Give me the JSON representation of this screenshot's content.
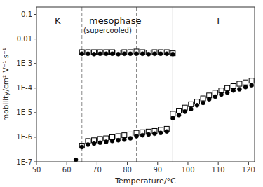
{
  "chart_data": {
    "type": "scatter",
    "log": "y",
    "grid": false,
    "xlabel": "Temperature/°C",
    "ylabel": "mobility/cm² V⁻¹ s⁻¹",
    "xlim": [
      50,
      122
    ],
    "ylim": [
      1e-07,
      0.2
    ],
    "xticks": [
      50,
      60,
      70,
      80,
      90,
      100,
      110,
      120
    ],
    "yticks": [
      {
        "value": 1e-07,
        "label": "1E-7"
      },
      {
        "value": 1e-06,
        "label": "1E-6"
      },
      {
        "value": 1e-05,
        "label": "1E-5"
      },
      {
        "value": 0.0001,
        "label": "1E-4"
      },
      {
        "value": 0.001,
        "label": "1E-3"
      },
      0.01,
      0.1
    ],
    "series": [
      {
        "marker": "circle",
        "color": "#000000",
        "x": [
          65,
          67,
          69,
          71,
          73,
          75,
          77,
          79,
          81,
          83,
          85,
          87,
          89,
          91,
          93,
          95
        ],
        "values": [
          0.0025,
          0.0025,
          0.0024,
          0.0025,
          0.0025,
          0.0025,
          0.0024,
          0.0025,
          0.0025,
          0.0025,
          0.0025,
          0.0024,
          0.0025,
          0.0025,
          0.0025,
          0.0024
        ]
      },
      {
        "marker": "square-open",
        "color": "#000000",
        "x": [
          65,
          67,
          69,
          71,
          73,
          75,
          77,
          79,
          81,
          83,
          85,
          87,
          89,
          91,
          93,
          95
        ],
        "values": [
          0.0029,
          0.0029,
          0.0029,
          0.0029,
          0.0029,
          0.0029,
          0.0028,
          0.0029,
          0.0029,
          0.0031,
          0.0029,
          0.0028,
          0.0029,
          0.0029,
          0.0029,
          0.0026
        ]
      },
      {
        "marker": "circle",
        "color": "#000000",
        "x": [
          63,
          65,
          67,
          69,
          71,
          73,
          75,
          77,
          79,
          81,
          83,
          85,
          87,
          89,
          91,
          93,
          95,
          97,
          99,
          101,
          103,
          105,
          107,
          109,
          111,
          113,
          115,
          117,
          119,
          121
        ],
        "values": [
          1.2e-07,
          4e-07,
          5e-07,
          5.5e-07,
          6e-07,
          6.5e-07,
          7e-07,
          7.5e-07,
          8e-07,
          9e-07,
          1.1e-06,
          1.2e-06,
          1.3e-06,
          1.4e-06,
          1.5e-06,
          1.7e-06,
          6e-06,
          8e-06,
          1.1e-05,
          1.4e-05,
          2e-05,
          2.5e-05,
          3.5e-05,
          4.5e-05,
          5.5e-05,
          6.5e-05,
          8e-05,
          9e-05,
          0.00011,
          0.00013
        ]
      },
      {
        "marker": "square-open",
        "color": "#000000",
        "x": [
          65,
          67,
          69,
          71,
          73,
          75,
          77,
          79,
          81,
          83,
          85,
          87,
          89,
          91,
          93,
          95,
          97,
          99,
          101,
          103,
          105,
          107,
          109,
          111,
          113,
          115,
          117,
          119,
          121
        ],
        "values": [
          4.5e-07,
          7e-07,
          7.5e-07,
          8.5e-07,
          9e-07,
          1e-06,
          1.1e-06,
          1.2e-06,
          1.3e-06,
          1.5e-06,
          1.6e-06,
          1.7e-06,
          1.8e-06,
          2e-06,
          2.2e-06,
          9e-06,
          1.2e-05,
          1.6e-05,
          2.2e-05,
          2.8e-05,
          3.8e-05,
          5e-05,
          6.5e-05,
          8e-05,
          0.0001,
          0.00012,
          0.00015,
          0.00017,
          0.0002
        ]
      }
    ],
    "vlines": [
      {
        "x": 65,
        "line_style": "dashed",
        "color": "#888888"
      },
      {
        "x": 83,
        "line_style": "dashed",
        "color": "#888888"
      },
      {
        "x": 95,
        "line_style": "solid",
        "color": "#888888"
      }
    ],
    "annotations": [
      {
        "text": "K",
        "x": 57,
        "y": 0.055
      },
      {
        "text": "mesophase",
        "x": 76,
        "y": 0.055
      },
      {
        "text": "(supercooled)",
        "x": 73.5,
        "y": 0.022
      },
      {
        "text": "I",
        "x": 110,
        "y": 0.055
      }
    ]
  }
}
